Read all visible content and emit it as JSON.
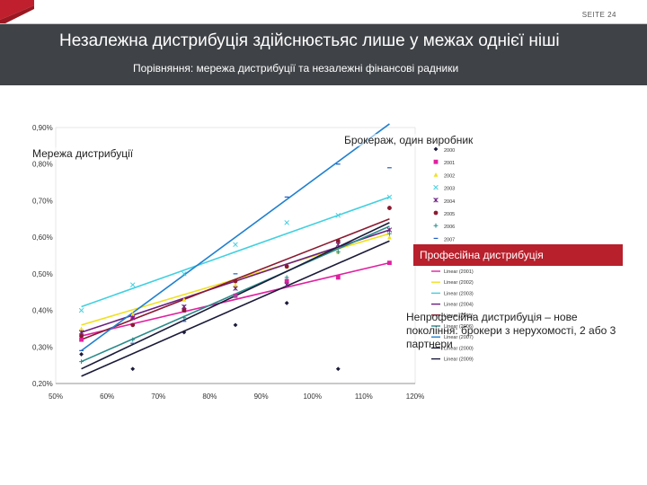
{
  "header": {
    "page_number": "SEITE 24",
    "title": "Незалежна дистрибуція здійснюєтьяс лише у межах однієї ніші",
    "subtitle": "Порівняння: мережа дистрибуції та незалежні фінансові радники"
  },
  "annotations": {
    "distribution_network": "Мережа дистрибуції",
    "brokerage": "Брокераж, один виробник",
    "professional": "Професійна дистрибуція",
    "non_professional": "Непрофесійна дистрибуція – нове покоління: брокери з нерухомості, 2 або 3 партнери"
  },
  "colors": {
    "header_bg": "#3f4246",
    "accent_red": "#b8202c",
    "logo_red": "#c0202e"
  },
  "chart_data": {
    "type": "scatter",
    "title": "",
    "xlabel": "",
    "ylabel": "",
    "xlim": [
      50,
      120
    ],
    "ylim": [
      0.2,
      0.9
    ],
    "x_ticks": [
      "50%",
      "60%",
      "70%",
      "80%",
      "90%",
      "100%",
      "110%",
      "120%"
    ],
    "y_ticks": [
      "0,20%",
      "0,30%",
      "0,40%",
      "0,50%",
      "0,60%",
      "0,70%",
      "0,80%",
      "0,90%"
    ],
    "legend_position": "right",
    "series": [
      {
        "name": "2000",
        "color": "#1a1a3a",
        "marker": "diamond",
        "points": [
          [
            55,
            0.28
          ],
          [
            65,
            0.24
          ],
          [
            75,
            0.34
          ],
          [
            85,
            0.36
          ],
          [
            95,
            0.42
          ],
          [
            105,
            0.24
          ],
          [
            115,
            0.68
          ]
        ]
      },
      {
        "name": "2001",
        "color": "#e020a0",
        "marker": "square",
        "points": [
          [
            55,
            0.32
          ],
          [
            65,
            0.38
          ],
          [
            75,
            0.4
          ],
          [
            85,
            0.44
          ],
          [
            95,
            0.48
          ],
          [
            105,
            0.49
          ],
          [
            115,
            0.53
          ]
        ]
      },
      {
        "name": "2002",
        "color": "#f0e020",
        "marker": "triangle",
        "points": [
          [
            55,
            0.35
          ],
          [
            65,
            0.39
          ],
          [
            75,
            0.43
          ],
          [
            85,
            0.47
          ],
          [
            95,
            0.52
          ],
          [
            105,
            0.56
          ],
          [
            115,
            0.6
          ]
        ]
      },
      {
        "name": "2003",
        "color": "#40d0e0",
        "marker": "x",
        "points": [
          [
            55,
            0.4
          ],
          [
            65,
            0.47
          ],
          [
            75,
            0.5
          ],
          [
            85,
            0.58
          ],
          [
            95,
            0.64
          ],
          [
            105,
            0.66
          ],
          [
            115,
            0.71
          ]
        ]
      },
      {
        "name": "2004",
        "color": "#6a2080",
        "marker": "star",
        "points": [
          [
            55,
            0.34
          ],
          [
            65,
            0.38
          ],
          [
            75,
            0.41
          ],
          [
            85,
            0.46
          ],
          [
            95,
            0.47
          ],
          [
            105,
            0.58
          ],
          [
            115,
            0.62
          ]
        ]
      },
      {
        "name": "2005",
        "color": "#8b1a30",
        "marker": "circle",
        "points": [
          [
            55,
            0.33
          ],
          [
            65,
            0.36
          ],
          [
            75,
            0.4
          ],
          [
            85,
            0.48
          ],
          [
            95,
            0.52
          ],
          [
            105,
            0.59
          ],
          [
            115,
            0.68
          ]
        ]
      },
      {
        "name": "2006",
        "color": "#2a8a8a",
        "marker": "plus",
        "points": [
          [
            55,
            0.26
          ],
          [
            65,
            0.32
          ],
          [
            75,
            0.38
          ],
          [
            85,
            0.44
          ],
          [
            95,
            0.49
          ],
          [
            105,
            0.56
          ],
          [
            115,
            0.61
          ]
        ]
      },
      {
        "name": "2007",
        "color": "#2060c0",
        "marker": "dash",
        "points": [
          [
            55,
            0.29
          ],
          [
            65,
            0.31
          ],
          [
            75,
            0.37
          ],
          [
            85,
            0.5
          ],
          [
            95,
            0.71
          ],
          [
            105,
            0.8
          ],
          [
            115,
            0.79
          ]
        ]
      }
    ],
    "trendlines": [
      {
        "name": "Linear (2001)",
        "color": "#e020a0",
        "from": [
          55,
          0.33
        ],
        "to": [
          115,
          0.53
        ]
      },
      {
        "name": "Linear (2002)",
        "color": "#f0e020",
        "from": [
          55,
          0.36
        ],
        "to": [
          115,
          0.61
        ]
      },
      {
        "name": "Linear (2003)",
        "color": "#40d0e0",
        "from": [
          55,
          0.41
        ],
        "to": [
          115,
          0.71
        ]
      },
      {
        "name": "Linear (2004)",
        "color": "#6a2080",
        "from": [
          55,
          0.34
        ],
        "to": [
          115,
          0.62
        ]
      },
      {
        "name": "Linear (2005)",
        "color": "#8b1a30",
        "from": [
          55,
          0.32
        ],
        "to": [
          115,
          0.65
        ]
      },
      {
        "name": "Linear (2006)",
        "color": "#2a8a8a",
        "from": [
          55,
          0.26
        ],
        "to": [
          115,
          0.63
        ]
      },
      {
        "name": "Linear (2007)",
        "color": "#2080d0",
        "from": [
          55,
          0.29
        ],
        "to": [
          115,
          0.91
        ]
      },
      {
        "name": "Linear (2000)",
        "color": "#1a1a3a",
        "from": [
          55,
          0.22
        ],
        "to": [
          115,
          0.59
        ]
      },
      {
        "name": "Linear (2009)",
        "color": "#1a1a3a",
        "from": [
          55,
          0.24
        ],
        "to": [
          115,
          0.64
        ]
      }
    ]
  }
}
